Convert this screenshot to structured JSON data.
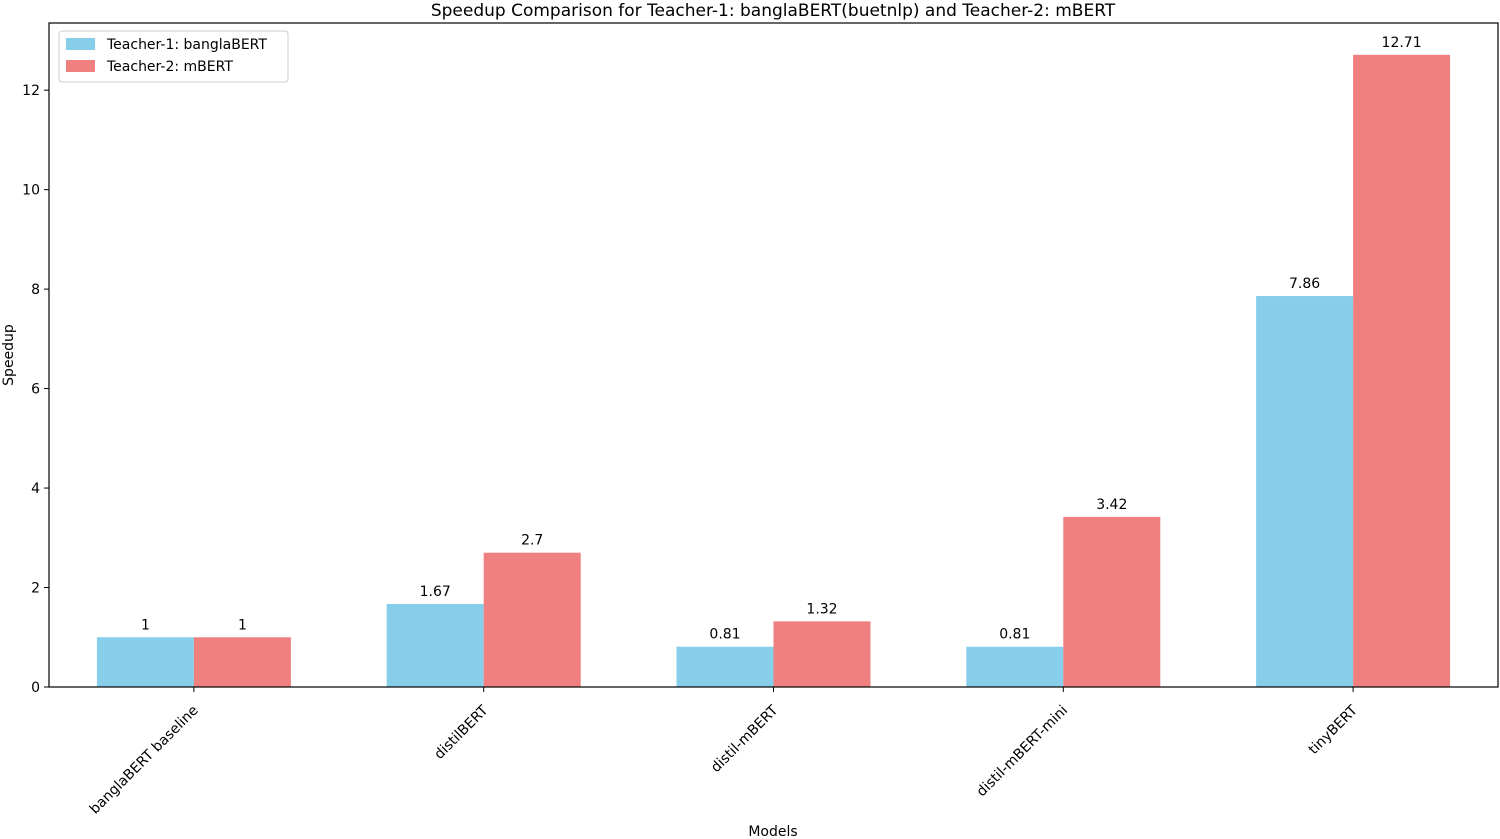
{
  "chart_data": {
    "type": "bar",
    "title": "Speedup Comparison for Teacher-1: banglaBERT(buetnlp) and Teacher-2: mBERT",
    "xlabel": "Models",
    "ylabel": "Speedup",
    "categories": [
      "banglaBERT baseline",
      "distilBERT",
      "distil-mBERT",
      "distil-mBERT-mini",
      "tinyBERT"
    ],
    "series": [
      {
        "name": "Teacher-1: banglaBERT",
        "color": "#87ceeb",
        "values": [
          1,
          1.67,
          0.81,
          0.81,
          7.86
        ],
        "labels": [
          "1",
          "1.67",
          "0.81",
          "0.81",
          "7.86"
        ]
      },
      {
        "name": "Teacher-2: mBERT",
        "color": "#f08080",
        "values": [
          1,
          2.7,
          1.32,
          3.42,
          12.71
        ],
        "labels": [
          "1",
          "2.7",
          "1.32",
          "3.42",
          "12.71"
        ]
      }
    ],
    "ylim": [
      0,
      13.35
    ],
    "yticks": [
      0,
      2,
      4,
      6,
      8,
      10,
      12
    ],
    "grid": false,
    "legend_position": "top-left"
  }
}
